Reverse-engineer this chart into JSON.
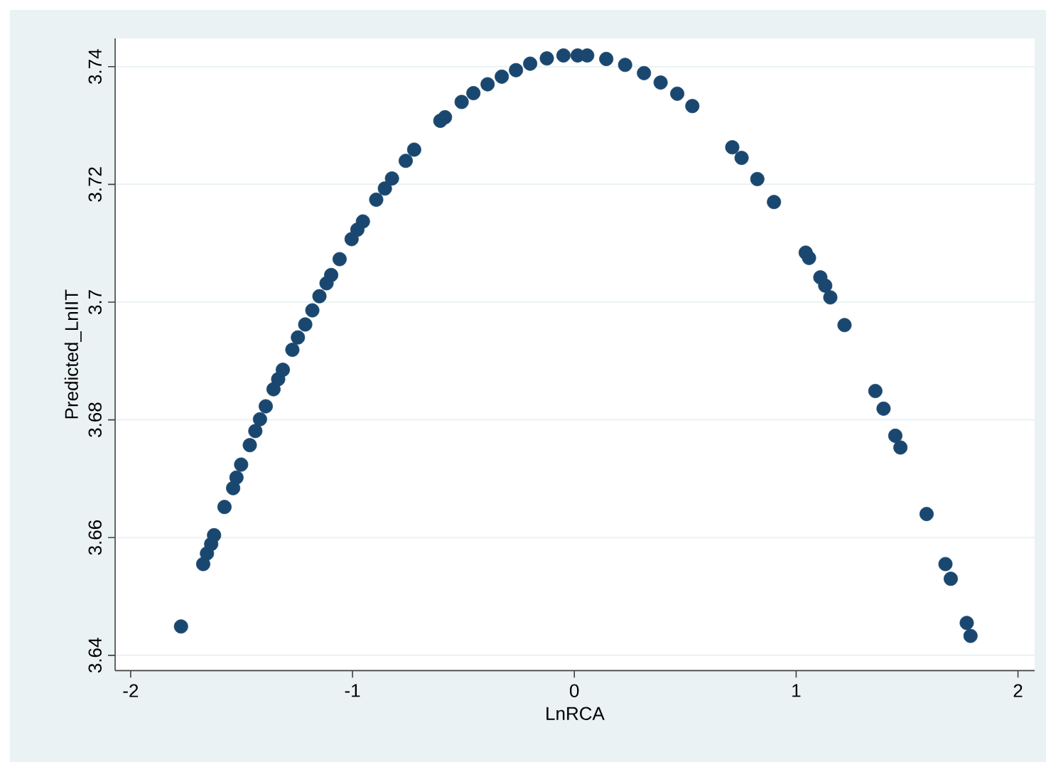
{
  "chart_data": {
    "type": "scatter",
    "xlabel": "LnRCA",
    "ylabel": "Predicted_LnIIT",
    "color": "#1a476f",
    "marker": "circle",
    "grid": "y",
    "xlim": [
      -2.07,
      2.075
    ],
    "ylim": [
      3.6374,
      3.7448
    ],
    "xticks": [
      -2,
      -1,
      0,
      1,
      2
    ],
    "yticks": [
      3.64,
      3.66,
      3.68,
      3.7,
      3.72,
      3.74
    ],
    "x": [
      -1.773,
      -1.673,
      -1.656,
      -1.637,
      -1.624,
      -1.577,
      -1.538,
      -1.523,
      -1.502,
      -1.463,
      -1.438,
      -1.417,
      -1.391,
      -1.356,
      -1.335,
      -1.314,
      -1.271,
      -1.246,
      -1.213,
      -1.181,
      -1.149,
      -1.117,
      -1.096,
      -1.058,
      -1.004,
      -0.978,
      -0.953,
      -0.893,
      -0.854,
      -0.822,
      -0.76,
      -0.722,
      -0.604,
      -0.583,
      -0.508,
      -0.455,
      -0.391,
      -0.327,
      -0.263,
      -0.199,
      -0.124,
      -0.049,
      0.015,
      0.058,
      0.144,
      0.229,
      0.314,
      0.389,
      0.464,
      0.532,
      0.712,
      0.754,
      0.825,
      0.9,
      1.043,
      1.058,
      1.109,
      1.131,
      1.154,
      1.218,
      1.357,
      1.394,
      1.447,
      1.47,
      1.588,
      1.673,
      1.697,
      1.769,
      1.786
    ],
    "values": [
      3.6449,
      3.6555,
      3.6573,
      3.6589,
      3.6604,
      3.6652,
      3.6684,
      3.6702,
      3.6724,
      3.6757,
      3.6781,
      3.6801,
      3.6823,
      3.6852,
      3.6869,
      3.6885,
      3.6919,
      3.694,
      3.6962,
      3.6986,
      3.701,
      3.7032,
      3.7046,
      3.7073,
      3.7107,
      3.7123,
      3.7137,
      3.7174,
      3.7193,
      3.721,
      3.724,
      3.7259,
      3.7308,
      3.7314,
      3.734,
      3.7355,
      3.737,
      3.7383,
      3.7394,
      3.7405,
      3.7414,
      3.7419,
      3.7419,
      3.7419,
      3.7413,
      3.7403,
      3.7389,
      3.7373,
      3.7354,
      3.7333,
      3.7263,
      3.7245,
      3.7209,
      3.717,
      3.7084,
      3.7075,
      3.7042,
      3.7028,
      3.7008,
      3.6961,
      3.6849,
      3.6819,
      3.6773,
      3.6753,
      3.664,
      3.6555,
      3.653,
      3.6455,
      3.6433
    ]
  }
}
